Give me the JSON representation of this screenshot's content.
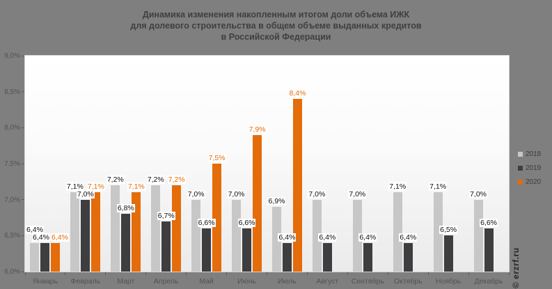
{
  "title": {
    "lines": [
      "Динамика изменения накопленным итогом доли объема ИЖК",
      "для долевого строительства в общем объеме выданных кредитов",
      "в Российской Федерации"
    ]
  },
  "watermark": "© erzrf.ru",
  "colors": {
    "background": "#7f7f7f",
    "plot_top": "#ffffff",
    "plot_bottom": "#ebebeb",
    "series_2018": "#c7c7c7",
    "series_2019": "#3e3e40",
    "series_2020": "#e46c0a",
    "title_text": "#3f3f3f",
    "axis_text": "#525252",
    "data_label_text": "#0d0d0d"
  },
  "legend": {
    "position": "right",
    "items": [
      {
        "label": "2018"
      },
      {
        "label": "2019"
      },
      {
        "label": "2020"
      }
    ]
  },
  "chart_data": {
    "type": "bar",
    "title": "Динамика изменения накопленным итогом доли объема ИЖК для долевого строительства в общем объеме выданных кредитов в Российской Федерации",
    "categories": [
      "Январь",
      "Февраль",
      "Март",
      "Апрель",
      "Май",
      "Июнь",
      "Июль",
      "Август",
      "Сентябрь",
      "Октябрь",
      "Ноябрь",
      "Декабрь"
    ],
    "series": [
      {
        "name": "2018",
        "color": "#c7c7c7",
        "values": [
          6.4,
          7.1,
          7.2,
          7.2,
          7.0,
          7.0,
          6.9,
          7.0,
          7.0,
          7.1,
          7.1,
          7.0
        ]
      },
      {
        "name": "2019",
        "color": "#3e3e40",
        "values": [
          6.4,
          7.0,
          6.8,
          6.7,
          6.6,
          6.6,
          6.4,
          6.4,
          6.4,
          6.4,
          6.5,
          6.6
        ]
      },
      {
        "name": "2020",
        "color": "#e46c0a",
        "values": [
          6.4,
          7.1,
          7.1,
          7.2,
          7.5,
          7.9,
          8.4,
          null,
          null,
          null,
          null,
          null
        ]
      }
    ],
    "ylim": [
      6.0,
      9.0
    ],
    "ytick_step": 0.5,
    "ytick_labels": [
      "6,0%",
      "6,5%",
      "7,0%",
      "7,5%",
      "8,0%",
      "8,5%",
      "9,0%"
    ],
    "data_label_format": "comma_percent",
    "grid": false,
    "legend_position": "right",
    "xlabel": "",
    "ylabel": ""
  }
}
